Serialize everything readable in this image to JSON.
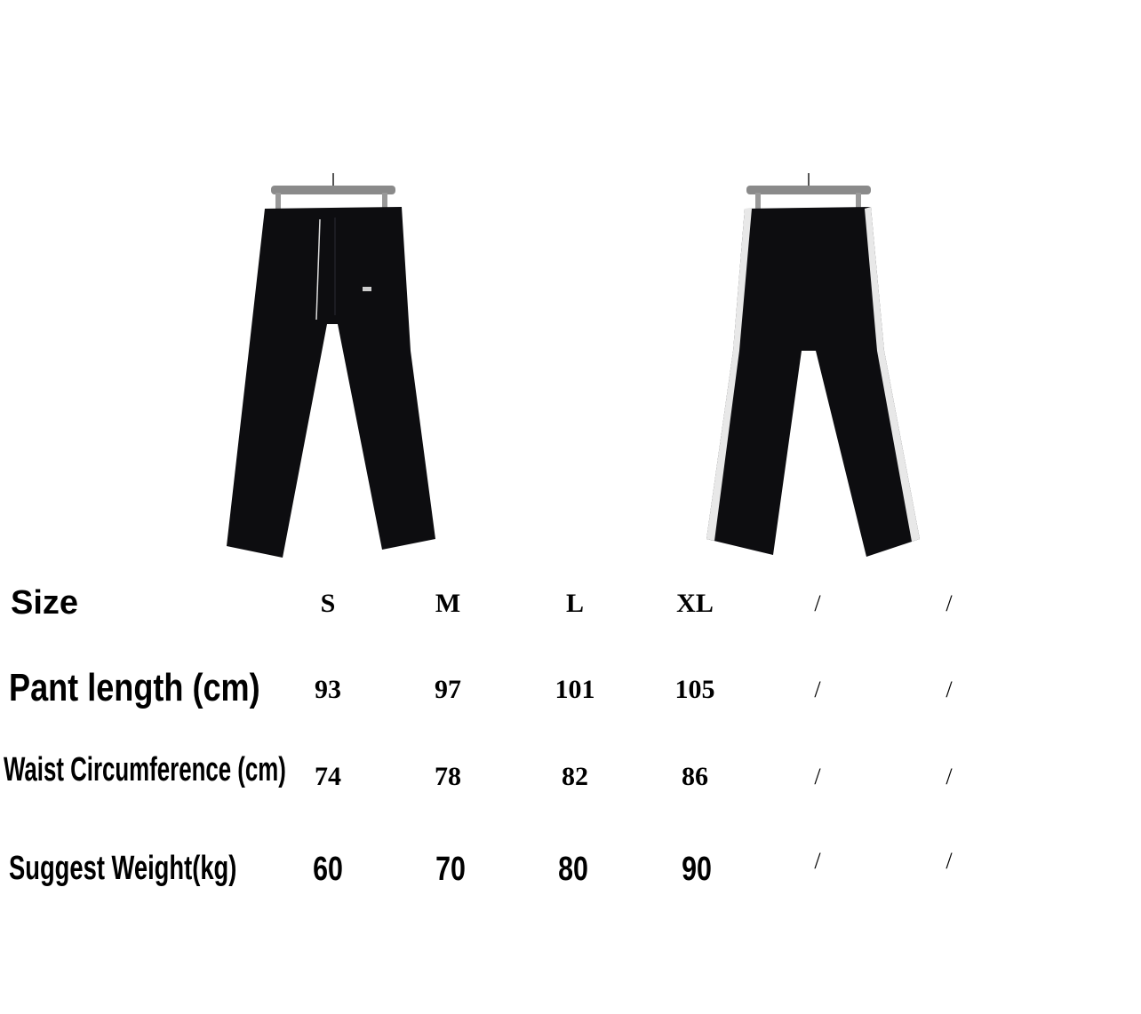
{
  "photos": [
    {
      "name": "front-view",
      "garment_color": "#0d0d10"
    },
    {
      "name": "back-view",
      "garment_color": "#0d0d10",
      "stripe_color": "#e8e8e8"
    }
  ],
  "size_chart": {
    "header": {
      "label": "Size",
      "values": [
        "S",
        "M",
        "L",
        "XL",
        "/",
        "/"
      ]
    },
    "rows": [
      {
        "label": "Pant length (cm)",
        "values": [
          "93",
          "97",
          "101",
          "105",
          "/",
          "/"
        ]
      },
      {
        "label": "Waist Circumference (cm)",
        "values": [
          "74",
          "78",
          "82",
          "86",
          "/",
          "/"
        ]
      },
      {
        "label": "Suggest Weight(kg)",
        "values": [
          "60",
          "70",
          "80",
          "90",
          "/",
          "/"
        ]
      }
    ]
  }
}
